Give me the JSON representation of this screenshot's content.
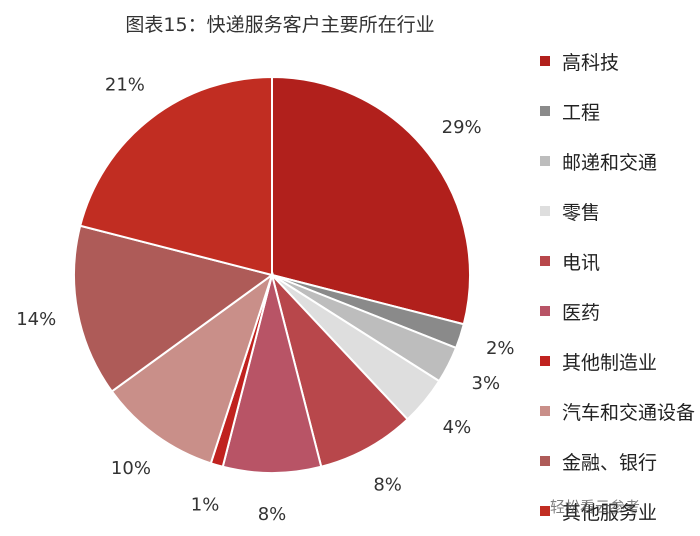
{
  "chart_data": {
    "type": "pie",
    "title": "图表15：快递服务客户主要所在行业",
    "start_angle_deg": 0,
    "direction": "clockwise",
    "legend_position": "right",
    "slices": [
      {
        "label": "高科技",
        "value": 29,
        "display": "29%",
        "color": "#B1201C"
      },
      {
        "label": "工程",
        "value": 2,
        "display": "2%",
        "color": "#8A8A8A"
      },
      {
        "label": "邮递和交通",
        "value": 3,
        "display": "3%",
        "color": "#BDBDBD"
      },
      {
        "label": "零售",
        "value": 4,
        "display": "4%",
        "color": "#DEDEDE"
      },
      {
        "label": "电讯",
        "value": 8,
        "display": "8%",
        "color": "#B8474B"
      },
      {
        "label": "医药",
        "value": 8,
        "display": "8%",
        "color": "#B85466"
      },
      {
        "label": "其他制造业",
        "value": 1,
        "display": "1%",
        "color": "#C0221F"
      },
      {
        "label": "汽车和交通设备",
        "value": 10,
        "display": "10%",
        "color": "#C98F89"
      },
      {
        "label": "金融、银行",
        "value": 14,
        "display": "14%",
        "color": "#AE5B58"
      },
      {
        "label": "其他服务业",
        "value": 21,
        "display": "21%",
        "color": "#C12D22"
      }
    ]
  },
  "watermark": "轻松看云参考"
}
